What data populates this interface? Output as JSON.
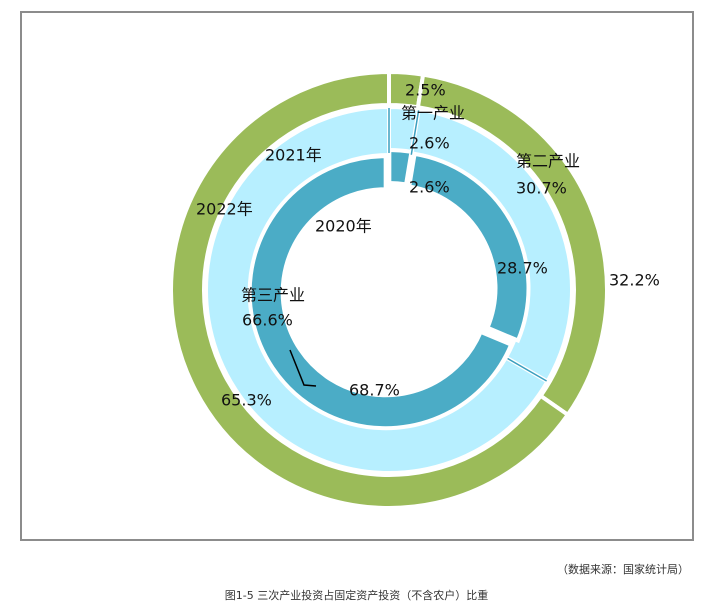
{
  "chart_data": {
    "type": "pie",
    "style": "nested-donut",
    "categories": [
      "第一产业",
      "第二产业",
      "第三产业"
    ],
    "series": [
      {
        "name": "2022年",
        "values": [
          2.5,
          32.2,
          65.3
        ],
        "labels": [
          "2.5%",
          "32.2%",
          "65.3%"
        ],
        "color": "#9bbb59"
      },
      {
        "name": "2021年",
        "values": [
          2.6,
          30.7,
          66.6
        ],
        "labels": [
          "2.6%",
          "30.7%",
          "66.6%"
        ],
        "color": "#b7efff"
      },
      {
        "name": "2020年",
        "values": [
          2.6,
          28.7,
          68.7
        ],
        "labels": [
          "2.6%",
          "28.7%",
          "68.7%"
        ],
        "color": "#4bacc6"
      }
    ]
  },
  "source_note": "（数据来源：国家统计局）",
  "caption": "图1-5 三次产业投资占固定资产投资（不含农户）比重"
}
